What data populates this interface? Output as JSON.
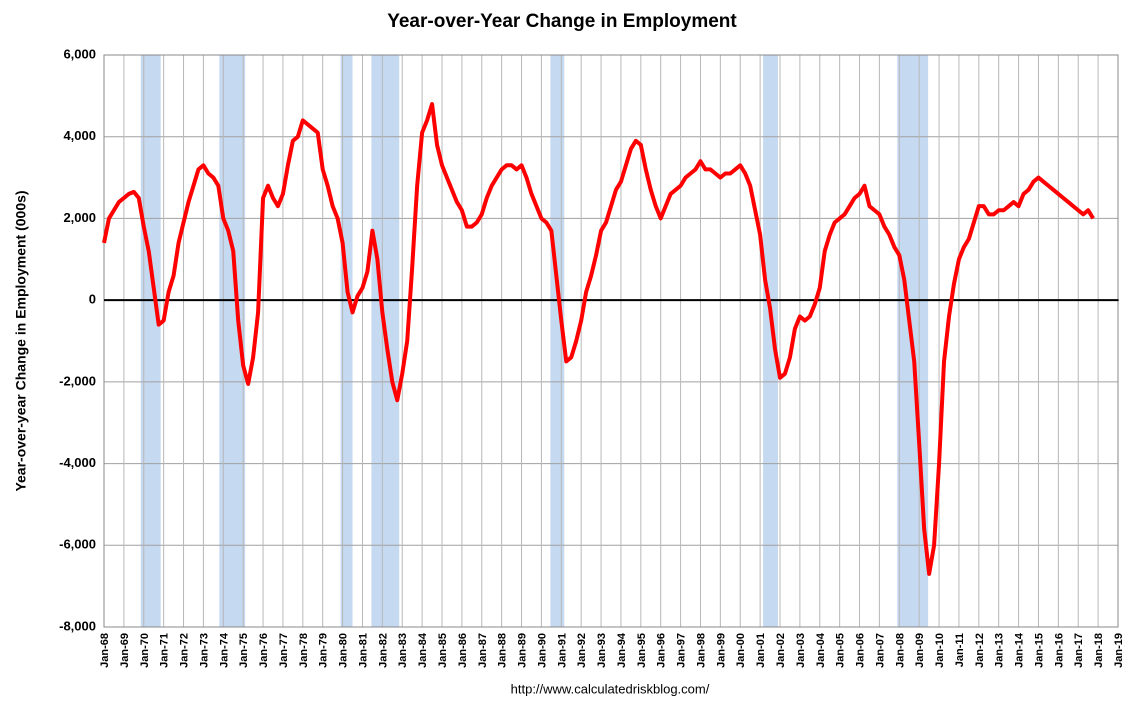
{
  "chart_data": {
    "type": "line",
    "title": "Year-over-Year Change in Employment",
    "y_label": "Year-over-year Change in Employment (000s)",
    "source": "http://www.calculatedriskblog.com/",
    "x": [
      1968,
      1968.25,
      1968.5,
      1968.75,
      1969,
      1969.25,
      1969.5,
      1969.75,
      1970,
      1970.25,
      1970.5,
      1970.75,
      1971,
      1971.25,
      1971.5,
      1971.75,
      1972,
      1972.25,
      1972.5,
      1972.75,
      1973,
      1973.25,
      1973.5,
      1973.75,
      1974,
      1974.25,
      1974.5,
      1974.75,
      1975,
      1975.25,
      1975.5,
      1975.75,
      1976,
      1976.25,
      1976.5,
      1976.75,
      1977,
      1977.25,
      1977.5,
      1977.75,
      1978,
      1978.25,
      1978.5,
      1978.75,
      1979,
      1979.25,
      1979.5,
      1979.75,
      1980,
      1980.25,
      1980.5,
      1980.75,
      1981,
      1981.25,
      1981.5,
      1981.75,
      1982,
      1982.25,
      1982.5,
      1982.75,
      1983,
      1983.25,
      1983.5,
      1983.75,
      1984,
      1984.25,
      1984.5,
      1984.75,
      1985,
      1985.25,
      1985.5,
      1985.75,
      1986,
      1986.25,
      1986.5,
      1986.75,
      1987,
      1987.25,
      1987.5,
      1987.75,
      1988,
      1988.25,
      1988.5,
      1988.75,
      1989,
      1989.25,
      1989.5,
      1989.75,
      1990,
      1990.25,
      1990.5,
      1990.75,
      1991,
      1991.25,
      1991.5,
      1991.75,
      1992,
      1992.25,
      1992.5,
      1992.75,
      1993,
      1993.25,
      1993.5,
      1993.75,
      1994,
      1994.25,
      1994.5,
      1994.75,
      1995,
      1995.25,
      1995.5,
      1995.75,
      1996,
      1996.25,
      1996.5,
      1996.75,
      1997,
      1997.25,
      1997.5,
      1997.75,
      1998,
      1998.25,
      1998.5,
      1998.75,
      1999,
      1999.25,
      1999.5,
      1999.75,
      2000,
      2000.25,
      2000.5,
      2000.75,
      2001,
      2001.25,
      2001.5,
      2001.75,
      2002,
      2002.25,
      2002.5,
      2002.75,
      2003,
      2003.25,
      2003.5,
      2003.75,
      2004,
      2004.25,
      2004.5,
      2004.75,
      2005,
      2005.25,
      2005.5,
      2005.75,
      2006,
      2006.25,
      2006.5,
      2006.75,
      2007,
      2007.25,
      2007.5,
      2007.75,
      2008,
      2008.25,
      2008.5,
      2008.75,
      2009,
      2009.25,
      2009.5,
      2009.75,
      2010,
      2010.25,
      2010.5,
      2010.75,
      2011,
      2011.25,
      2011.5,
      2011.75,
      2012,
      2012.25,
      2012.5,
      2012.75,
      2013,
      2013.25,
      2013.5,
      2013.75,
      2014,
      2014.25,
      2014.5,
      2014.75,
      2015,
      2015.25,
      2015.5,
      2015.75,
      2016,
      2016.25,
      2016.5,
      2016.75,
      2017,
      2017.25,
      2017.5,
      2017.75
    ],
    "series": [
      {
        "color": "#ff0000",
        "values": [
          1400,
          2000,
          2200,
          2400,
          2500,
          2600,
          2650,
          2500,
          1800,
          1200,
          300,
          -600,
          -500,
          200,
          600,
          1400,
          1900,
          2400,
          2800,
          3200,
          3300,
          3100,
          3000,
          2800,
          2000,
          1700,
          1200,
          -500,
          -1600,
          -2050,
          -1400,
          -300,
          2500,
          2800,
          2500,
          2300,
          2600,
          3300,
          3900,
          4000,
          4400,
          4300,
          4200,
          4100,
          3200,
          2800,
          2300,
          2000,
          1400,
          200,
          -300,
          100,
          300,
          700,
          1700,
          1000,
          -300,
          -1200,
          -2000,
          -2450,
          -1800,
          -1000,
          800,
          2800,
          4100,
          4400,
          4800,
          3800,
          3300,
          3000,
          2700,
          2400,
          2200,
          1800,
          1800,
          1900,
          2100,
          2500,
          2800,
          3000,
          3200,
          3300,
          3300,
          3200,
          3300,
          3000,
          2600,
          2300,
          2000,
          1900,
          1700,
          600,
          -500,
          -1500,
          -1400,
          -1000,
          -500,
          200,
          600,
          1100,
          1700,
          1900,
          2300,
          2700,
          2900,
          3300,
          3700,
          3900,
          3800,
          3200,
          2700,
          2300,
          2000,
          2300,
          2600,
          2700,
          2800,
          3000,
          3100,
          3200,
          3400,
          3200,
          3200,
          3100,
          3000,
          3100,
          3100,
          3200,
          3300,
          3100,
          2800,
          2200,
          1600,
          500,
          -200,
          -1200,
          -1900,
          -1800,
          -1400,
          -700,
          -400,
          -500,
          -400,
          -100,
          300,
          1200,
          1600,
          1900,
          2000,
          2100,
          2300,
          2500,
          2600,
          2800,
          2300,
          2200,
          2100,
          1800,
          1600,
          1300,
          1100,
          500,
          -500,
          -1500,
          -3500,
          -5600,
          -6700,
          -6000,
          -4000,
          -1500,
          -400,
          400,
          1000,
          1300,
          1500,
          1900,
          2300,
          2300,
          2100,
          2100,
          2200,
          2200,
          2300,
          2400,
          2300,
          2600,
          2700,
          2900,
          3000,
          2900,
          2800,
          2700,
          2600,
          2500,
          2400,
          2300,
          2200,
          2100,
          2200,
          2000
        ]
      }
    ],
    "recessions": [
      [
        1969.85,
        1970.85
      ],
      [
        1973.8,
        1975.1
      ],
      [
        1979.9,
        1980.5
      ],
      [
        1981.45,
        1982.85
      ],
      [
        1990.45,
        1991.15
      ],
      [
        2001.15,
        2001.9
      ],
      [
        2007.9,
        2009.45
      ]
    ],
    "recession_color": "#c5d9f1",
    "xlim": [
      1968,
      2019
    ],
    "xticks": [
      {
        "value": 1968,
        "label": "Jan-68"
      },
      {
        "value": 1969,
        "label": "Jan-69"
      },
      {
        "value": 1970,
        "label": "Jan-70"
      },
      {
        "value": 1971,
        "label": "Jan-71"
      },
      {
        "value": 1972,
        "label": "Jan-72"
      },
      {
        "value": 1973,
        "label": "Jan-73"
      },
      {
        "value": 1974,
        "label": "Jan-74"
      },
      {
        "value": 1975,
        "label": "Jan-75"
      },
      {
        "value": 1976,
        "label": "Jan-76"
      },
      {
        "value": 1977,
        "label": "Jan-77"
      },
      {
        "value": 1978,
        "label": "Jan-78"
      },
      {
        "value": 1979,
        "label": "Jan-79"
      },
      {
        "value": 1980,
        "label": "Jan-80"
      },
      {
        "value": 1981,
        "label": "Jan-81"
      },
      {
        "value": 1982,
        "label": "Jan-82"
      },
      {
        "value": 1983,
        "label": "Jan-83"
      },
      {
        "value": 1984,
        "label": "Jan-84"
      },
      {
        "value": 1985,
        "label": "Jan-85"
      },
      {
        "value": 1986,
        "label": "Jan-86"
      },
      {
        "value": 1987,
        "label": "Jan-87"
      },
      {
        "value": 1988,
        "label": "Jan-88"
      },
      {
        "value": 1989,
        "label": "Jan-89"
      },
      {
        "value": 1990,
        "label": "Jan-90"
      },
      {
        "value": 1991,
        "label": "Jan-91"
      },
      {
        "value": 1992,
        "label": "Jan-92"
      },
      {
        "value": 1993,
        "label": "Jan-93"
      },
      {
        "value": 1994,
        "label": "Jan-94"
      },
      {
        "value": 1995,
        "label": "Jan-95"
      },
      {
        "value": 1996,
        "label": "Jan-96"
      },
      {
        "value": 1997,
        "label": "Jan-97"
      },
      {
        "value": 1998,
        "label": "Jan-98"
      },
      {
        "value": 1999,
        "label": "Jan-99"
      },
      {
        "value": 2000,
        "label": "Jan-00"
      },
      {
        "value": 2001,
        "label": "Jan-01"
      },
      {
        "value": 2002,
        "label": "Jan-02"
      },
      {
        "value": 2003,
        "label": "Jan-03"
      },
      {
        "value": 2004,
        "label": "Jan-04"
      },
      {
        "value": 2005,
        "label": "Jan-05"
      },
      {
        "value": 2006,
        "label": "Jan-06"
      },
      {
        "value": 2007,
        "label": "Jan-07"
      },
      {
        "value": 2008,
        "label": "Jan-08"
      },
      {
        "value": 2009,
        "label": "Jan-09"
      },
      {
        "value": 2010,
        "label": "Jan-10"
      },
      {
        "value": 2011,
        "label": "Jan-11"
      },
      {
        "value": 2012,
        "label": "Jan-12"
      },
      {
        "value": 2013,
        "label": "Jan-13"
      },
      {
        "value": 2014,
        "label": "Jan-14"
      },
      {
        "value": 2015,
        "label": "Jan-15"
      },
      {
        "value": 2016,
        "label": "Jan-16"
      },
      {
        "value": 2017,
        "label": "Jan-17"
      },
      {
        "value": 2018,
        "label": "Jan-18"
      },
      {
        "value": 2019,
        "label": "Jan-19"
      }
    ],
    "ylim": [
      -8000,
      6000
    ],
    "yticks": [
      {
        "value": -8000,
        "label": "-8,000"
      },
      {
        "value": -6000,
        "label": "-6,000"
      },
      {
        "value": -4000,
        "label": "-4,000"
      },
      {
        "value": -2000,
        "label": "-2,000"
      },
      0,
      {
        "value": 2000,
        "label": "2,000"
      },
      {
        "value": 4000,
        "label": "4,000"
      },
      {
        "value": 6000,
        "label": "6,000"
      }
    ],
    "grid": true
  }
}
